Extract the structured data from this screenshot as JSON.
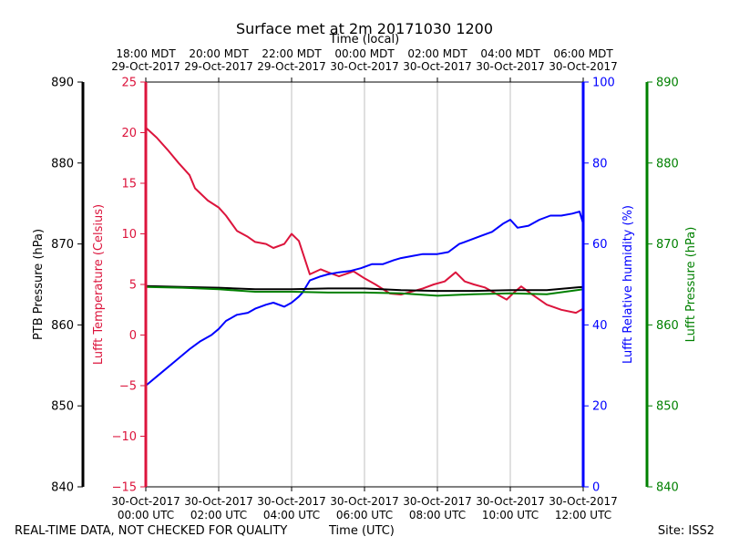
{
  "chart_data": {
    "type": "line",
    "title": "Surface met at 2m 20171030 1200",
    "top_axis_title": "Time (local)",
    "bottom_axis_title": "Time (UTC)",
    "footer_left": "REAL-TIME DATA, NOT CHECKED FOR QUALITY",
    "footer_right": "Site: ISS2",
    "x_range_hours_utc": [
      0,
      12
    ],
    "grid": "vertical",
    "x_ticks_utc": [
      {
        "date": "30-Oct-2017",
        "time": "00:00 UTC"
      },
      {
        "date": "30-Oct-2017",
        "time": "02:00 UTC"
      },
      {
        "date": "30-Oct-2017",
        "time": "04:00 UTC"
      },
      {
        "date": "30-Oct-2017",
        "time": "06:00 UTC"
      },
      {
        "date": "30-Oct-2017",
        "time": "08:00 UTC"
      },
      {
        "date": "30-Oct-2017",
        "time": "10:00 UTC"
      },
      {
        "date": "30-Oct-2017",
        "time": "12:00 UTC"
      }
    ],
    "x_ticks_local": [
      {
        "time": "18:00 MDT",
        "date": "29-Oct-2017"
      },
      {
        "time": "20:00 MDT",
        "date": "29-Oct-2017"
      },
      {
        "time": "22:00 MDT",
        "date": "29-Oct-2017"
      },
      {
        "time": "00:00 MDT",
        "date": "30-Oct-2017"
      },
      {
        "time": "02:00 MDT",
        "date": "30-Oct-2017"
      },
      {
        "time": "04:00 MDT",
        "date": "30-Oct-2017"
      },
      {
        "time": "06:00 MDT",
        "date": "30-Oct-2017"
      }
    ],
    "axes": {
      "ptb": {
        "label": "PTB Pressure (hPa)",
        "range": [
          840,
          890
        ],
        "ticks": [
          "840",
          "850",
          "860",
          "870",
          "880",
          "890"
        ],
        "color": "#000000"
      },
      "temp": {
        "label": "Lufft Temperature (Celsius)",
        "range": [
          -15,
          25
        ],
        "ticks": [
          "−15",
          "−10",
          "−5",
          "0",
          "5",
          "10",
          "15",
          "20",
          "25"
        ],
        "color": "#dc143c"
      },
      "rh": {
        "label": "Lufft Relative humidity (%)",
        "range": [
          0,
          100
        ],
        "ticks": [
          "0",
          "20",
          "40",
          "60",
          "80",
          "100"
        ],
        "color": "#0000ff"
      },
      "lufft_p": {
        "label": "Lufft Pressure (hPa)",
        "range": [
          840,
          890
        ],
        "ticks": [
          "840",
          "850",
          "860",
          "870",
          "880",
          "890"
        ],
        "color": "#008000"
      }
    },
    "series": [
      {
        "axis": "temp",
        "color": "#dc143c",
        "x": [
          0,
          0.3,
          0.6,
          0.9,
          1.2,
          1.35,
          1.7,
          2.0,
          2.2,
          2.5,
          2.8,
          3.0,
          3.3,
          3.5,
          3.8,
          4.0,
          4.2,
          4.5,
          4.8,
          5.0,
          5.3,
          5.7,
          6.0,
          6.3,
          6.7,
          7.0,
          7.3,
          7.6,
          7.9,
          8.2,
          8.5,
          8.75,
          9.0,
          9.3,
          9.6,
          9.9,
          10.1,
          10.3,
          10.6,
          11.0,
          11.4,
          11.8,
          12.0
        ],
        "y": [
          20.5,
          19.5,
          18.3,
          17.0,
          15.8,
          14.5,
          13.3,
          12.6,
          11.8,
          10.3,
          9.7,
          9.2,
          9.0,
          8.6,
          9.0,
          10.0,
          9.3,
          6.0,
          6.5,
          6.2,
          5.8,
          6.3,
          5.6,
          5.0,
          4.1,
          4.0,
          4.3,
          4.6,
          5.0,
          5.3,
          6.2,
          5.3,
          5.0,
          4.7,
          4.1,
          3.5,
          4.2,
          4.8,
          4.0,
          3.0,
          2.5,
          2.2,
          2.6
        ]
      },
      {
        "axis": "rh",
        "color": "#0000ff",
        "x": [
          0,
          0.4,
          0.8,
          1.2,
          1.5,
          1.8,
          2.0,
          2.2,
          2.5,
          2.8,
          3.0,
          3.3,
          3.5,
          3.8,
          4.0,
          4.2,
          4.3,
          4.5,
          4.8,
          5.0,
          5.3,
          5.6,
          5.9,
          6.2,
          6.5,
          6.8,
          7.0,
          7.3,
          7.6,
          8.0,
          8.3,
          8.6,
          8.9,
          9.2,
          9.5,
          9.8,
          10.0,
          10.2,
          10.5,
          10.8,
          11.1,
          11.4,
          11.7,
          11.9,
          12.0
        ],
        "y": [
          25,
          28,
          31,
          34,
          36,
          37.5,
          39,
          41,
          42.5,
          43,
          44,
          45,
          45.5,
          44.5,
          45.5,
          47,
          48,
          51,
          52,
          52.5,
          53,
          53.3,
          54,
          55,
          55,
          56,
          56.5,
          57,
          57.5,
          57.5,
          58,
          60,
          61,
          62,
          63,
          65,
          66,
          64,
          64.5,
          66,
          67,
          67,
          67.5,
          68,
          65
        ]
      },
      {
        "axis": "ptb",
        "color": "#000000",
        "x": [
          0,
          1,
          2,
          3,
          4,
          5,
          6,
          7,
          8,
          9,
          10,
          11,
          12
        ],
        "y": [
          864.8,
          864.7,
          864.6,
          864.4,
          864.4,
          864.5,
          864.5,
          864.3,
          864.2,
          864.2,
          864.3,
          864.3,
          864.7
        ]
      },
      {
        "axis": "lufft_p",
        "color": "#008000",
        "x": [
          0,
          1,
          2,
          3,
          4,
          5,
          6,
          7,
          8,
          9,
          10,
          11,
          12
        ],
        "y": [
          864.7,
          864.6,
          864.4,
          864.1,
          864.1,
          864.0,
          864.0,
          863.9,
          863.6,
          863.8,
          863.9,
          863.8,
          864.4
        ]
      }
    ]
  }
}
